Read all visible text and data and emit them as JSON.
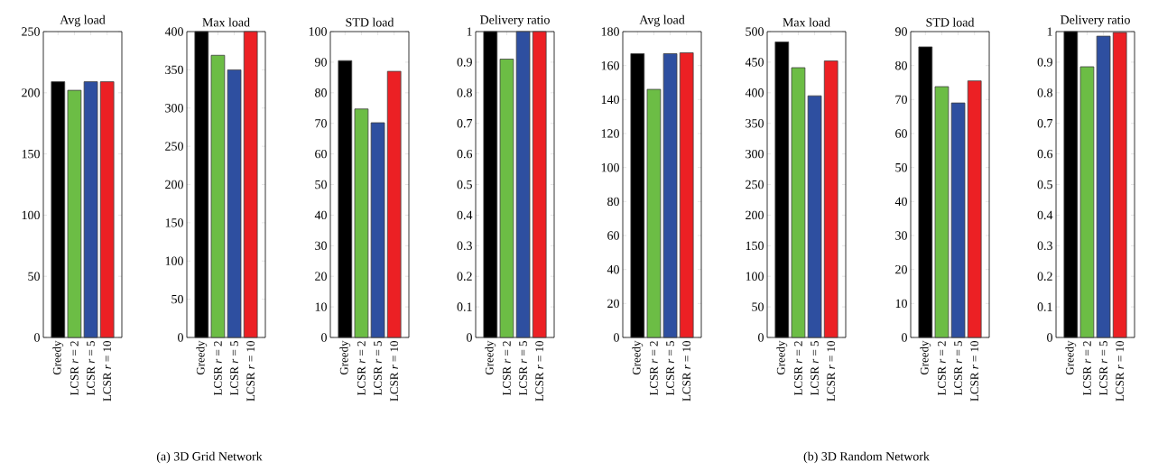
{
  "chart_data": [
    {
      "type": "bar",
      "title": "Avg load",
      "categories": [
        "Greedy",
        "LCSR *r* = 2",
        "LCSR *r* = 5",
        "LCSR *r* = 10"
      ],
      "values": [
        209,
        202,
        209,
        209
      ],
      "colors": [
        "#000000",
        "#6cbd45",
        "#2e4fa0",
        "#ec2024"
      ],
      "ylim": [
        0,
        250
      ],
      "yticks": [
        0,
        50,
        100,
        150,
        200,
        250
      ],
      "annotations": [
        "(a)  3D Grid Network"
      ]
    },
    {
      "type": "bar",
      "title": "Max load",
      "categories": [
        "Greedy",
        "LCSR *r* = 2",
        "LCSR *r* = 5",
        "LCSR *r* = 10"
      ],
      "values": [
        400,
        369,
        350,
        400
      ],
      "colors": [
        "#000000",
        "#6cbd45",
        "#2e4fa0",
        "#ec2024"
      ],
      "ylim": [
        0,
        400
      ],
      "yticks": [
        0,
        50,
        100,
        150,
        200,
        250,
        300,
        350,
        400
      ]
    },
    {
      "type": "bar",
      "title": "STD load",
      "categories": [
        "Greedy",
        "LCSR *r* = 2",
        "LCSR *r* = 5",
        "LCSR *r* = 10"
      ],
      "values": [
        90.5,
        74.7,
        70.2,
        87
      ],
      "colors": [
        "#000000",
        "#6cbd45",
        "#2e4fa0",
        "#ec2024"
      ],
      "ylim": [
        0,
        100
      ],
      "yticks": [
        0,
        10,
        20,
        30,
        40,
        50,
        60,
        70,
        80,
        90,
        100
      ]
    },
    {
      "type": "bar",
      "title": "Delivery ratio",
      "categories": [
        "Greedy",
        "LCSR *r* = 2",
        "LCSR *r* = 5",
        "LCSR *r* = 10"
      ],
      "values": [
        1,
        0.91,
        1,
        1
      ],
      "colors": [
        "#000000",
        "#6cbd45",
        "#2e4fa0",
        "#ec2024"
      ],
      "ylim": [
        0,
        1
      ],
      "yticks": [
        0,
        0.1,
        0.2,
        0.3,
        0.4,
        0.5,
        0.6,
        0.7,
        0.8,
        0.9,
        1
      ]
    },
    {
      "type": "bar",
      "title": "Avg load",
      "categories": [
        "Greedy",
        "LCSR *r* = 2",
        "LCSR *r* = 5",
        "LCSR *r* = 10"
      ],
      "values": [
        167,
        146,
        167,
        167.5
      ],
      "colors": [
        "#000000",
        "#6cbd45",
        "#2e4fa0",
        "#ec2024"
      ],
      "ylim": [
        0,
        180
      ],
      "yticks": [
        0,
        20,
        40,
        60,
        80,
        100,
        120,
        140,
        160,
        180
      ],
      "annotations": [
        "(b)  3D Random Network"
      ]
    },
    {
      "type": "bar",
      "title": "Max load",
      "categories": [
        "Greedy",
        "LCSR *r* = 2",
        "LCSR *r* = 5",
        "LCSR *r* = 10"
      ],
      "values": [
        483,
        441,
        395,
        452
      ],
      "colors": [
        "#000000",
        "#6cbd45",
        "#2e4fa0",
        "#ec2024"
      ],
      "ylim": [
        0,
        500
      ],
      "yticks": [
        0,
        50,
        100,
        150,
        200,
        250,
        300,
        350,
        400,
        450,
        500
      ]
    },
    {
      "type": "bar",
      "title": "STD load",
      "categories": [
        "Greedy",
        "LCSR *r* = 2",
        "LCSR *r* = 5",
        "LCSR *r* = 10"
      ],
      "values": [
        85.5,
        73.8,
        69,
        75.5
      ],
      "colors": [
        "#000000",
        "#6cbd45",
        "#2e4fa0",
        "#ec2024"
      ],
      "ylim": [
        0,
        90
      ],
      "yticks": [
        0,
        10,
        20,
        30,
        40,
        50,
        60,
        70,
        80,
        90
      ]
    },
    {
      "type": "bar",
      "title": "Delivery ratio",
      "categories": [
        "Greedy",
        "LCSR *r* = 2",
        "LCSR *r* = 5",
        "LCSR *r* = 10"
      ],
      "values": [
        1,
        0.885,
        0.985,
        0.997
      ],
      "colors": [
        "#000000",
        "#6cbd45",
        "#2e4fa0",
        "#ec2024"
      ],
      "ylim": [
        0,
        1
      ],
      "yticks": [
        0,
        0.1,
        0.2,
        0.3,
        0.4,
        0.5,
        0.6,
        0.7,
        0.8,
        0.9,
        1
      ]
    }
  ]
}
